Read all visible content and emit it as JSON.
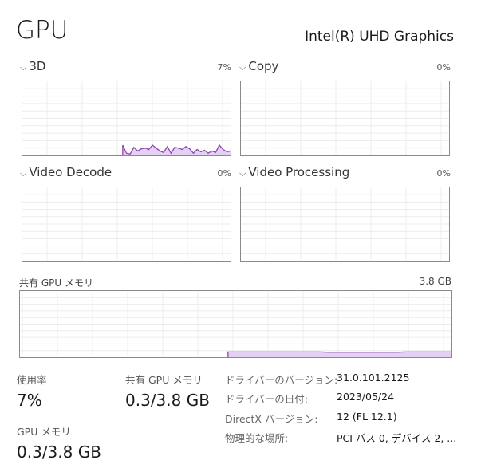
{
  "header": {
    "title": "GPU",
    "adapter": "Intel(R) UHD Graphics"
  },
  "engines": [
    {
      "label": "3D",
      "percent": "7%",
      "values": [
        0,
        0,
        0,
        0,
        0,
        0,
        0,
        0,
        0,
        0,
        0,
        0,
        0,
        0,
        0,
        0,
        0,
        0,
        0,
        0,
        0,
        0,
        0,
        0,
        0,
        0,
        0,
        14,
        3,
        2,
        11,
        6,
        9,
        10,
        8,
        14,
        10,
        6,
        4,
        12,
        3,
        11,
        10,
        8,
        12,
        9,
        3,
        8,
        5,
        7,
        3,
        6,
        4,
        14,
        8,
        5,
        6
      ]
    },
    {
      "label": "Copy",
      "percent": "0%",
      "values": []
    },
    {
      "label": "Video Decode",
      "percent": "0%",
      "values": []
    },
    {
      "label": "Video Processing",
      "percent": "0%",
      "values": []
    }
  ],
  "shared_memory_chart": {
    "label": "共有 GPU メモリ",
    "max": "3.8 GB",
    "values": [
      0,
      0,
      0,
      0,
      0,
      0,
      0,
      0,
      0,
      0,
      0,
      0,
      0,
      0,
      0,
      0,
      0,
      0,
      0,
      0,
      0,
      0,
      0,
      0,
      0,
      0,
      0,
      8,
      8,
      8,
      8,
      8,
      8,
      8,
      8,
      8,
      8,
      8,
      8,
      8,
      7.5,
      7.5,
      7.5,
      7.5,
      7.5,
      7.5,
      7.5,
      7.5,
      7.5,
      7.5,
      8,
      8,
      8,
      8,
      8,
      8,
      8
    ]
  },
  "stats": {
    "utilization": {
      "label": "使用率",
      "value": "7%"
    },
    "shared_memory": {
      "label": "共有 GPU メモリ",
      "value": "0.3/3.8 GB"
    },
    "gpu_memory": {
      "label": "GPU メモリ",
      "value": "0.3/3.8 GB"
    }
  },
  "info": [
    {
      "key": "ドライバーのバージョン:",
      "value": "31.0.101.2125"
    },
    {
      "key": "ドライバーの日付:",
      "value": "2023/05/24"
    },
    {
      "key": "DirectX バージョン:",
      "value": "12 (FL 12.1)"
    },
    {
      "key": "物理的な場所:",
      "value": "PCI バス 0, デバイス 2, ..."
    }
  ],
  "colors": {
    "accent": "#8e44ad",
    "fill": "#e3d1f3",
    "grid": "#ececec",
    "border": "#8a8a8a"
  }
}
